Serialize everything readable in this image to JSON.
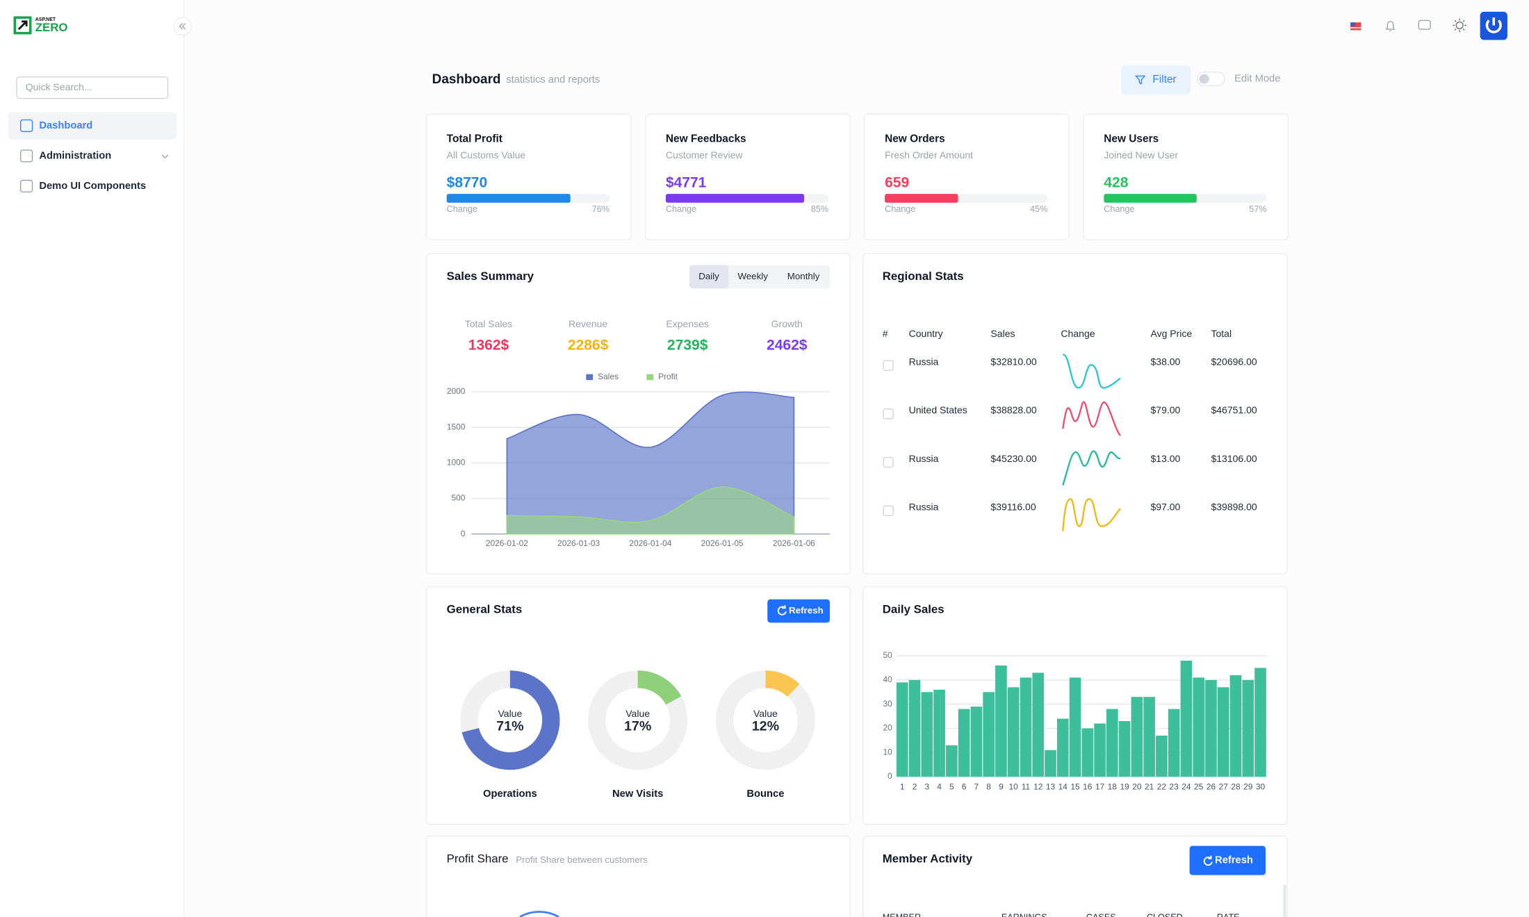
{
  "sidebar": {
    "logo_top": "ASP.NET",
    "logo": "ZERO",
    "search_placeholder": "Quick Search...",
    "menu": [
      "Dashboard",
      "Administration",
      "Demo UI Components"
    ]
  },
  "header": {
    "title": "Dashboard",
    "subtitle": "statistics and reports",
    "filter": "Filter",
    "edit_mode": "Edit Mode"
  },
  "stat_cards": [
    {
      "title": "Total Profit",
      "subtitle": "All Customs Value",
      "value": "$8770",
      "change": "Change",
      "progress": 76,
      "progress_label": "76%",
      "color": "#1e88e5"
    },
    {
      "title": "New Feedbacks",
      "subtitle": "Customer Review",
      "value": "$4771",
      "change": "Change",
      "progress": 85,
      "progress_label": "85%",
      "color": "#7c3aed"
    },
    {
      "title": "New Orders",
      "subtitle": "Fresh Order Amount",
      "value": "659",
      "change": "Change",
      "progress": 45,
      "progress_label": "45%",
      "color": "#f43f5e"
    },
    {
      "title": "New Users",
      "subtitle": "Joined New User",
      "value": "428",
      "change": "Change",
      "progress": 57,
      "progress_label": "57%",
      "color": "#22c55e"
    }
  ],
  "sales_summary": {
    "title": "Sales Summary",
    "tabs": [
      "Daily",
      "Weekly",
      "Monthly"
    ],
    "kpis": [
      {
        "label": "Total Sales",
        "value": "1362$",
        "color": "#f0375f"
      },
      {
        "label": "Revenue",
        "value": "2286$",
        "color": "#f5b40f"
      },
      {
        "label": "Expenses",
        "value": "2739$",
        "color": "#22b45a"
      },
      {
        "label": "Growth",
        "value": "2462$",
        "color": "#7c3aed"
      }
    ]
  },
  "regional_stats": {
    "title": "Regional Stats",
    "columns": [
      "#",
      "Country",
      "Sales",
      "Change",
      "Avg Price",
      "Total"
    ],
    "rows": [
      [
        "Russia",
        "$32810.00",
        "$38.00",
        "$20696.00"
      ],
      [
        "United States",
        "$38828.00",
        "$79.00",
        "$46751.00"
      ],
      [
        "Russia",
        "$45230.00",
        "$13.00",
        "$13106.00"
      ],
      [
        "Russia",
        "$39116.00",
        "$97.00",
        "$39898.00"
      ]
    ]
  },
  "general_stats": {
    "title": "General Stats",
    "refresh": "Refresh"
  },
  "profit_share": {
    "title": "Profit Share",
    "subtitle": "Profit Share between customers"
  },
  "member_activity": {
    "title": "Member Activity",
    "refresh": "Refresh",
    "columns": [
      "MEMBER",
      "EARNINGS",
      "CASES",
      "CLOSED",
      "RATE"
    ]
  },
  "chart_data": [
    {
      "type": "area",
      "x": [
        "2026-01-02",
        "2026-01-03",
        "2026-01-04",
        "2026-01-05",
        "2026-01-06"
      ],
      "series": [
        {
          "name": "Sales",
          "color": "#5b74c8",
          "values": [
            1340,
            1680,
            1220,
            1950,
            1920
          ]
        },
        {
          "name": "Profit",
          "color": "#9ad57f",
          "values": [
            260,
            240,
            190,
            660,
            240
          ]
        }
      ],
      "ylim": [
        0,
        2000
      ],
      "yticks": [
        0,
        500,
        1000,
        1500,
        2000
      ],
      "grid": true,
      "legend": "top"
    },
    {
      "type": "donut",
      "categories": [
        "Operations",
        "New Visits",
        "Bounce"
      ],
      "values": [
        71,
        17,
        12
      ],
      "value_labels": [
        "71%",
        "17%",
        "12%"
      ],
      "center_label": "Value",
      "colors": [
        "#5b74c8",
        "#8fd07a",
        "#f9c74f"
      ]
    },
    {
      "type": "bar",
      "title": "Daily Sales",
      "categories": [
        "1",
        "2",
        "3",
        "4",
        "5",
        "6",
        "7",
        "8",
        "9",
        "10",
        "11",
        "12",
        "13",
        "14",
        "15",
        "16",
        "17",
        "18",
        "19",
        "20",
        "21",
        "22",
        "23",
        "24",
        "25",
        "26",
        "27",
        "28",
        "29",
        "30"
      ],
      "values": [
        39,
        40,
        35,
        36,
        13,
        28,
        29,
        35,
        46,
        37,
        41,
        43,
        11,
        24,
        41,
        20,
        22,
        28,
        23,
        33,
        33,
        17,
        28,
        48,
        41,
        40,
        37,
        42,
        40,
        45
      ],
      "color": "#3dbf9c",
      "ylim": [
        0,
        50
      ],
      "yticks": [
        0,
        10,
        20,
        30,
        40,
        50
      ],
      "grid": true
    }
  ]
}
